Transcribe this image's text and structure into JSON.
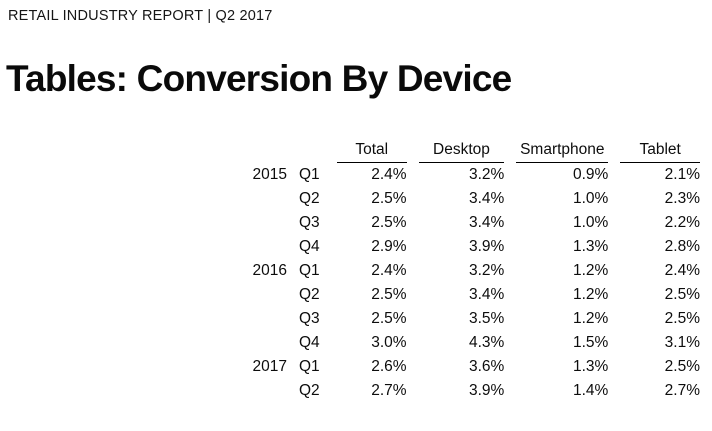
{
  "page": {
    "kicker": "RETAIL INDUSTRY REPORT | Q2 2017",
    "title": "Tables: Conversion By Device"
  },
  "table": {
    "columns": [
      "Total",
      "Desktop",
      "Smartphone",
      "Tablet"
    ],
    "rows": [
      {
        "year": "2015",
        "quarter": "Q1",
        "values": [
          "2.4%",
          "3.2%",
          "0.9%",
          "2.1%"
        ]
      },
      {
        "year": "",
        "quarter": "Q2",
        "values": [
          "2.5%",
          "3.4%",
          "1.0%",
          "2.3%"
        ]
      },
      {
        "year": "",
        "quarter": "Q3",
        "values": [
          "2.5%",
          "3.4%",
          "1.0%",
          "2.2%"
        ]
      },
      {
        "year": "",
        "quarter": "Q4",
        "values": [
          "2.9%",
          "3.9%",
          "1.3%",
          "2.8%"
        ]
      },
      {
        "year": "2016",
        "quarter": "Q1",
        "values": [
          "2.4%",
          "3.2%",
          "1.2%",
          "2.4%"
        ]
      },
      {
        "year": "",
        "quarter": "Q2",
        "values": [
          "2.5%",
          "3.4%",
          "1.2%",
          "2.5%"
        ]
      },
      {
        "year": "",
        "quarter": "Q3",
        "values": [
          "2.5%",
          "3.5%",
          "1.2%",
          "2.5%"
        ]
      },
      {
        "year": "",
        "quarter": "Q4",
        "values": [
          "3.0%",
          "4.3%",
          "1.5%",
          "3.1%"
        ]
      },
      {
        "year": "2017",
        "quarter": "Q1",
        "values": [
          "2.6%",
          "3.6%",
          "1.3%",
          "2.5%"
        ]
      },
      {
        "year": "",
        "quarter": "Q2",
        "values": [
          "2.7%",
          "3.9%",
          "1.4%",
          "2.7%"
        ]
      }
    ]
  },
  "chart_data": {
    "type": "table",
    "title": "Tables: Conversion By Device",
    "subtitle": "RETAIL INDUSTRY REPORT | Q2 2017",
    "columns": [
      "Total",
      "Desktop",
      "Smartphone",
      "Tablet"
    ],
    "row_labels": [
      "2015 Q1",
      "2015 Q2",
      "2015 Q3",
      "2015 Q4",
      "2016 Q1",
      "2016 Q2",
      "2016 Q3",
      "2016 Q4",
      "2017 Q1",
      "2017 Q2"
    ],
    "unit": "%",
    "series": [
      {
        "name": "Total",
        "values": [
          2.4,
          2.5,
          2.5,
          2.9,
          2.4,
          2.5,
          2.5,
          3.0,
          2.6,
          2.7
        ]
      },
      {
        "name": "Desktop",
        "values": [
          3.2,
          3.4,
          3.4,
          3.9,
          3.2,
          3.4,
          3.5,
          4.3,
          3.6,
          3.9
        ]
      },
      {
        "name": "Smartphone",
        "values": [
          0.9,
          1.0,
          1.0,
          1.3,
          1.2,
          1.2,
          1.2,
          1.5,
          1.3,
          1.4
        ]
      },
      {
        "name": "Tablet",
        "values": [
          2.1,
          2.3,
          2.2,
          2.8,
          2.4,
          2.5,
          2.5,
          3.1,
          2.5,
          2.7
        ]
      }
    ]
  },
  "colors": {
    "background": "#ffffff",
    "text": "#0d0d0d",
    "rule": "#000000"
  }
}
